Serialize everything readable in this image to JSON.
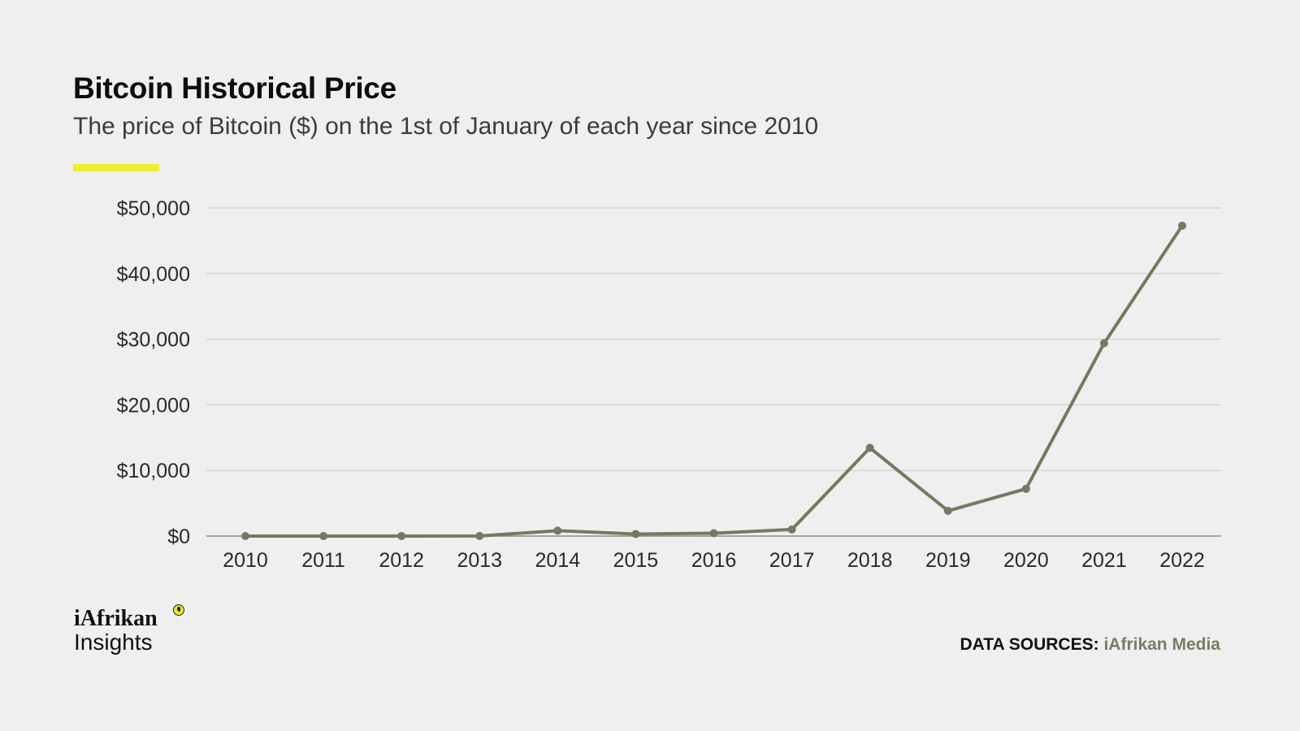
{
  "header": {
    "title": "Bitcoin Historical Price",
    "subtitle": "The price of Bitcoin ($) on the 1st of January of each year since 2010"
  },
  "colors": {
    "background": "#efefef",
    "accent": "#eeee2e",
    "line": "#767960",
    "grid": "#c9c9c9",
    "text": "#0d0d0d",
    "muted_text": "#3c3c3c",
    "source_highlight": "#7a7c63"
  },
  "chart_data": {
    "type": "line",
    "x": [
      "2010",
      "2011",
      "2012",
      "2013",
      "2014",
      "2015",
      "2016",
      "2017",
      "2018",
      "2019",
      "2020",
      "2021",
      "2022"
    ],
    "series": [
      {
        "values": [
          0,
          0.3,
          5,
          13,
          815,
          315,
          434,
          998,
          13444,
          3850,
          7200,
          29375,
          47300
        ]
      }
    ],
    "y_ticks": [
      0,
      10000,
      20000,
      30000,
      40000,
      50000
    ],
    "y_tick_labels": [
      "$0",
      "$10,000",
      "$20,000",
      "$30,000",
      "$40,000",
      "$50,000"
    ],
    "ylim": [
      0,
      50000
    ],
    "grid": true,
    "markers": true,
    "legend": "none",
    "xlabel": "",
    "ylabel": ""
  },
  "logo": {
    "line1": "iAfrikan",
    "line2": "Insights",
    "icon": "africa-globe-icon"
  },
  "footer": {
    "sources_label": "DATA SOURCES:",
    "sources_value": "iAfrikan Media"
  }
}
